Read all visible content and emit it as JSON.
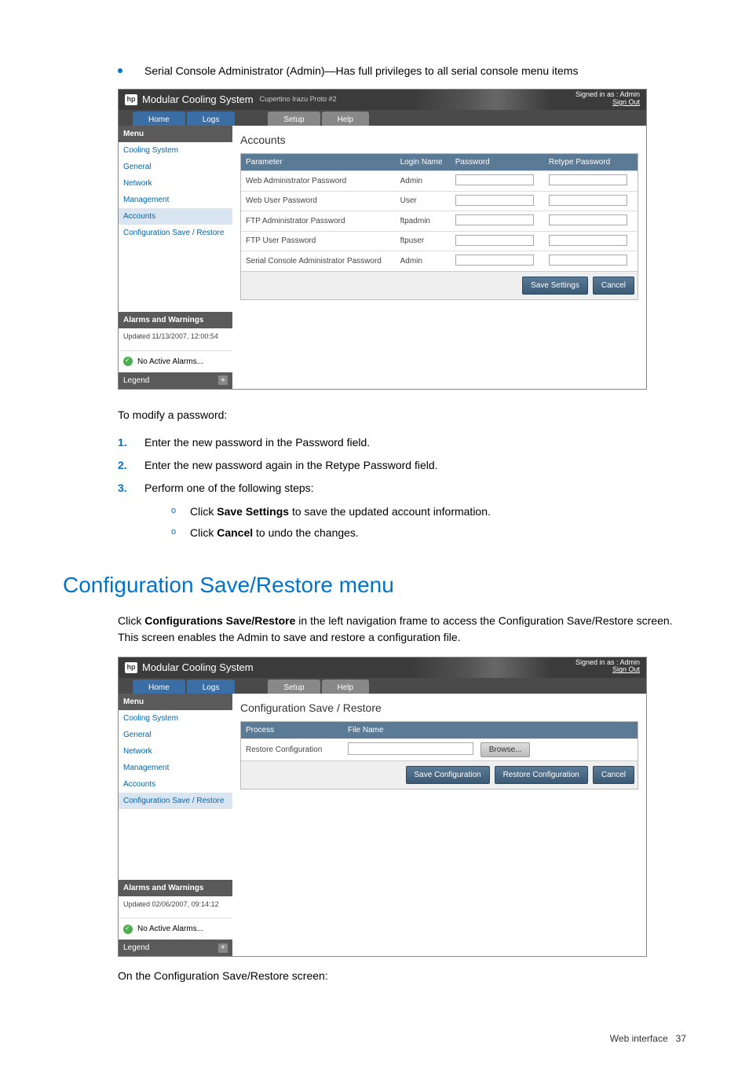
{
  "intro_bullet": "Serial Console Administrator (Admin)—Has full privileges to all serial console menu items",
  "screenshot1": {
    "app_title": "Modular Cooling System",
    "app_subtitle": "Cupertino Irazu Proto #2",
    "signed_in": "Signed in as : Admin",
    "sign_out": "Sign Out",
    "tabs": {
      "home": "Home",
      "logs": "Logs",
      "setup": "Setup",
      "help": "Help"
    },
    "sidebar": {
      "menu_hdr": "Menu",
      "items": [
        "Cooling System",
        "General",
        "Network",
        "Management",
        "Accounts",
        "Configuration Save / Restore"
      ],
      "active_index": 4,
      "alarms_hdr": "Alarms and Warnings",
      "updated": "Updated 11/13/2007, 12:00:54",
      "no_alarms": "No Active Alarms...",
      "legend": "Legend"
    },
    "main": {
      "title": "Accounts",
      "columns": [
        "Parameter",
        "Login Name",
        "Password",
        "Retype Password"
      ],
      "rows": [
        {
          "param": "Web Administrator Password",
          "login": "Admin"
        },
        {
          "param": "Web User Password",
          "login": "User"
        },
        {
          "param": "FTP Administrator Password",
          "login": "ftpadmin"
        },
        {
          "param": "FTP User Password",
          "login": "ftpuser"
        },
        {
          "param": "Serial Console Administrator Password",
          "login": "Admin"
        }
      ],
      "save_btn": "Save Settings",
      "cancel_btn": "Cancel"
    }
  },
  "modify_intro": "To modify a password:",
  "steps": [
    "Enter the new password in the Password field.",
    "Enter the new password again in the Retype Password field.",
    "Perform one of the following steps:"
  ],
  "substeps": {
    "a_pre": "Click ",
    "a_bold": "Save Settings",
    "a_post": " to save the updated account information.",
    "b_pre": "Click ",
    "b_bold": "Cancel",
    "b_post": " to undo the changes."
  },
  "section_heading": "Configuration Save/Restore menu",
  "section_para_pre": "Click ",
  "section_para_bold": "Configurations Save/Restore",
  "section_para_post": " in the left navigation frame to access the Configuration Save/Restore screen. This screen enables the Admin to save and restore a configuration file.",
  "screenshot2": {
    "app_title": "Modular Cooling System",
    "signed_in": "Signed in as : Admin",
    "sign_out": "Sign Out",
    "tabs": {
      "home": "Home",
      "logs": "Logs",
      "setup": "Setup",
      "help": "Help"
    },
    "sidebar": {
      "menu_hdr": "Menu",
      "items": [
        "Cooling System",
        "General",
        "Network",
        "Management",
        "Accounts",
        "Configuration Save / Restore"
      ],
      "active_index": 5,
      "alarms_hdr": "Alarms and Warnings",
      "updated": "Updated 02/06/2007, 09:14:12",
      "no_alarms": "No Active Alarms...",
      "legend": "Legend"
    },
    "main": {
      "title": "Configuration Save / Restore",
      "columns": [
        "Process",
        "File Name"
      ],
      "row_process": "Restore Configuration",
      "browse_btn": "Browse...",
      "save_cfg_btn": "Save Configuration",
      "restore_cfg_btn": "Restore Configuration",
      "cancel_btn": "Cancel"
    }
  },
  "closing_line": "On the Configuration Save/Restore screen:",
  "footer_label": "Web interface",
  "footer_page": "37"
}
